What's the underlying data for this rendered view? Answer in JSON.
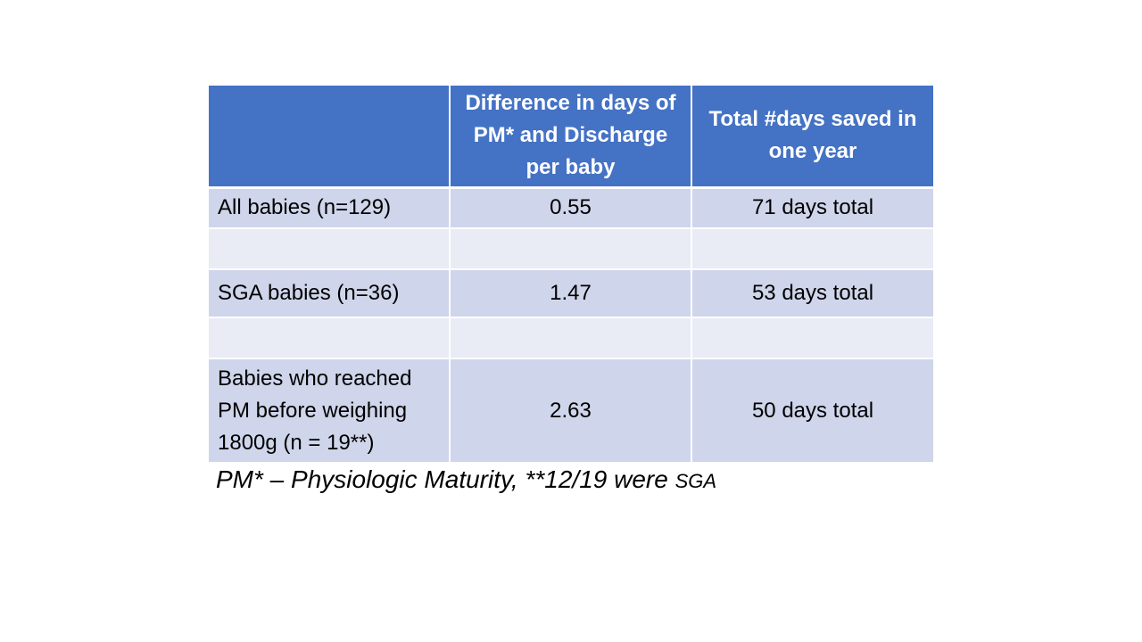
{
  "table": {
    "headers": [
      "",
      "Difference in days of PM* and Discharge per baby",
      "Total #days saved in one year"
    ],
    "rows": [
      {
        "label": "All babies (n=129)",
        "difference": "0.55",
        "total": "71 days total"
      },
      {
        "label": "",
        "difference": "",
        "total": ""
      },
      {
        "label": "SGA babies (n=36)",
        "difference": "1.47",
        "total": "53 days total"
      },
      {
        "label": "",
        "difference": "",
        "total": ""
      },
      {
        "label": "Babies who reached PM before weighing 1800g (n = 19**)",
        "difference": "2.63",
        "total": "50 days total"
      }
    ]
  },
  "footnote": {
    "main": "PM* – Physiologic  Maturity, **12/19 were ",
    "tail": "SGA"
  },
  "colors": {
    "header_bg": "#4472c4",
    "row_dark": "#cfd5ea",
    "row_light": "#e9ebf5"
  }
}
